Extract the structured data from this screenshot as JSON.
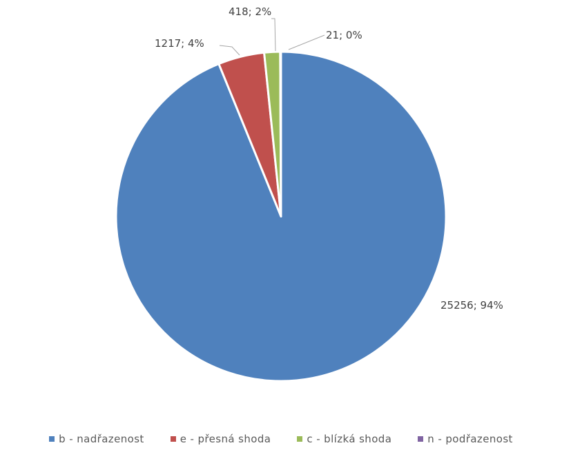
{
  "chart_data": {
    "type": "pie",
    "slices": [
      {
        "category": "b - nadřazenost",
        "value": 25256,
        "label": "25256; 94%",
        "color": "#4f81bd"
      },
      {
        "category": "e - přesná shoda",
        "value": 1217,
        "label": "1217; 4%",
        "color": "#c0504d"
      },
      {
        "category": "c - blízká shoda",
        "value": 418,
        "label": "418; 2%",
        "color": "#9bbb59"
      },
      {
        "category": "n - podřazenost",
        "value": 21,
        "label": "21; 0%",
        "color": "#8064a2"
      }
    ],
    "start_angle": "12 o'clock",
    "direction": "counterclockwise",
    "legend_position": "bottom"
  }
}
